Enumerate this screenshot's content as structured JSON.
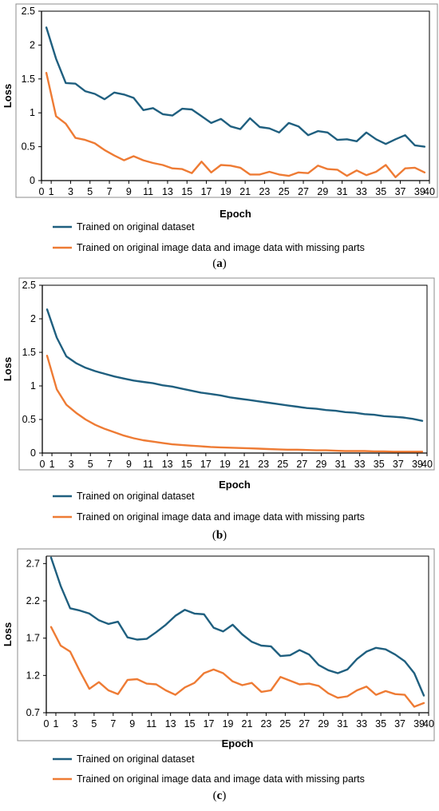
{
  "colors": {
    "series1": "#1f5f7f",
    "series2": "#ee7b34",
    "frame": "#8c8c8c"
  },
  "chart_data": [
    {
      "type": "line",
      "caption_open": "(",
      "caption_letter": "a",
      "caption_close": ")",
      "xlabel": "Epoch",
      "ylabel": "Loss",
      "xlim": [
        0,
        40
      ],
      "ylim": [
        0,
        2.5
      ],
      "yticks": [
        0,
        0.5,
        1,
        1.5,
        2,
        2.5
      ],
      "ytick_labels": [
        "0",
        "0.5",
        "1",
        "1.5",
        "2",
        "2.5"
      ],
      "xticks": [
        0,
        1,
        3,
        5,
        7,
        9,
        11,
        13,
        15,
        17,
        19,
        21,
        23,
        25,
        27,
        29,
        31,
        33,
        35,
        37,
        39,
        40
      ],
      "xtick_labels": [
        "0",
        "1",
        "3",
        "5",
        "7",
        "9",
        "11",
        "13",
        "15",
        "17",
        "19",
        "21",
        "23",
        "25",
        "27",
        "29",
        "31",
        "33",
        "35",
        "37",
        "39",
        "40"
      ],
      "x": [
        0.5,
        1.5,
        2.5,
        3.5,
        4.5,
        5.5,
        6.5,
        7.5,
        8.5,
        9.5,
        10.5,
        11.5,
        12.5,
        13.5,
        14.5,
        15.5,
        16.5,
        17.5,
        18.5,
        19.5,
        20.5,
        21.5,
        22.5,
        23.5,
        24.5,
        25.5,
        26.5,
        27.5,
        28.5,
        29.5,
        30.5,
        31.5,
        32.5,
        33.5,
        34.5,
        35.5,
        36.5,
        37.5,
        38.5,
        39.5
      ],
      "series": [
        {
          "name": "Trained on original dataset",
          "values": [
            2.26,
            1.8,
            1.44,
            1.43,
            1.32,
            1.28,
            1.2,
            1.3,
            1.27,
            1.22,
            1.04,
            1.07,
            0.98,
            0.96,
            1.06,
            1.05,
            0.95,
            0.85,
            0.91,
            0.8,
            0.76,
            0.92,
            0.79,
            0.77,
            0.71,
            0.85,
            0.8,
            0.67,
            0.73,
            0.71,
            0.6,
            0.61,
            0.58,
            0.71,
            0.61,
            0.54,
            0.61,
            0.67,
            0.52,
            0.5
          ]
        },
        {
          "name": "Trained on original image data and image data with missing parts",
          "values": [
            1.59,
            0.95,
            0.84,
            0.63,
            0.6,
            0.55,
            0.45,
            0.37,
            0.3,
            0.36,
            0.3,
            0.26,
            0.23,
            0.18,
            0.17,
            0.11,
            0.28,
            0.12,
            0.23,
            0.22,
            0.19,
            0.09,
            0.09,
            0.13,
            0.09,
            0.07,
            0.12,
            0.11,
            0.22,
            0.17,
            0.16,
            0.07,
            0.15,
            0.08,
            0.13,
            0.23,
            0.05,
            0.18,
            0.19,
            0.12
          ]
        }
      ]
    },
    {
      "type": "line",
      "caption_open": "(",
      "caption_letter": "b",
      "caption_close": ")",
      "xlabel": "Epoch",
      "ylabel": "Loss",
      "xlim": [
        0,
        40
      ],
      "ylim": [
        0,
        2.5
      ],
      "yticks": [
        0,
        0.5,
        1,
        1.5,
        2,
        2.5
      ],
      "ytick_labels": [
        "0",
        "0.5",
        "1",
        "1.5",
        "2",
        "2.5"
      ],
      "xticks": [
        0,
        1,
        3,
        5,
        7,
        9,
        11,
        13,
        15,
        17,
        19,
        21,
        23,
        25,
        27,
        29,
        31,
        33,
        35,
        37,
        39,
        40
      ],
      "xtick_labels": [
        "0",
        "1",
        "3",
        "5",
        "7",
        "9",
        "11",
        "13",
        "15",
        "17",
        "19",
        "21",
        "23",
        "25",
        "27",
        "29",
        "31",
        "33",
        "35",
        "37",
        "39",
        "40"
      ],
      "x": [
        0.5,
        1.5,
        2.5,
        3.5,
        4.5,
        5.5,
        6.5,
        7.5,
        8.5,
        9.5,
        10.5,
        11.5,
        12.5,
        13.5,
        14.5,
        15.5,
        16.5,
        17.5,
        18.5,
        19.5,
        20.5,
        21.5,
        22.5,
        23.5,
        24.5,
        25.5,
        26.5,
        27.5,
        28.5,
        29.5,
        30.5,
        31.5,
        32.5,
        33.5,
        34.5,
        35.5,
        36.5,
        37.5,
        38.5,
        39.5
      ],
      "series": [
        {
          "name": "Trained on original dataset",
          "values": [
            2.14,
            1.72,
            1.44,
            1.34,
            1.27,
            1.22,
            1.18,
            1.14,
            1.11,
            1.08,
            1.06,
            1.04,
            1.01,
            0.99,
            0.96,
            0.93,
            0.9,
            0.88,
            0.86,
            0.83,
            0.81,
            0.79,
            0.77,
            0.75,
            0.73,
            0.71,
            0.69,
            0.67,
            0.66,
            0.64,
            0.63,
            0.61,
            0.6,
            0.58,
            0.57,
            0.55,
            0.54,
            0.53,
            0.51,
            0.48
          ]
        },
        {
          "name": "Trained on original image data and image data with missing parts",
          "values": [
            1.45,
            0.95,
            0.72,
            0.6,
            0.5,
            0.42,
            0.36,
            0.31,
            0.26,
            0.22,
            0.19,
            0.17,
            0.15,
            0.13,
            0.12,
            0.11,
            0.1,
            0.09,
            0.085,
            0.08,
            0.075,
            0.07,
            0.065,
            0.06,
            0.055,
            0.05,
            0.05,
            0.045,
            0.04,
            0.04,
            0.035,
            0.03,
            0.03,
            0.03,
            0.025,
            0.025,
            0.02,
            0.02,
            0.02,
            0.02
          ]
        }
      ]
    },
    {
      "type": "line",
      "caption_open": "(",
      "caption_letter": "c",
      "caption_close": ")",
      "xlabel": "Epoch",
      "ylabel": "Loss",
      "xlim": [
        0,
        40
      ],
      "ylim": [
        0.7,
        2.8
      ],
      "yticks": [
        0.7,
        1.2,
        1.7,
        2.2,
        2.7
      ],
      "ytick_labels": [
        "0.7",
        "1.2",
        "1.7",
        "2.2",
        "2.7"
      ],
      "xticks": [
        0,
        1,
        3,
        5,
        7,
        9,
        11,
        13,
        15,
        17,
        19,
        21,
        23,
        25,
        27,
        29,
        31,
        33,
        35,
        37,
        39,
        40
      ],
      "xtick_labels": [
        "0",
        "1",
        "3",
        "5",
        "7",
        "9",
        "11",
        "13",
        "15",
        "17",
        "19",
        "21",
        "23",
        "25",
        "27",
        "29",
        "31",
        "33",
        "35",
        "37",
        "39",
        "40"
      ],
      "x": [
        0.5,
        1.5,
        2.5,
        3.5,
        4.5,
        5.5,
        6.5,
        7.5,
        8.5,
        9.5,
        10.5,
        11.5,
        12.5,
        13.5,
        14.5,
        15.5,
        16.5,
        17.5,
        18.5,
        19.5,
        20.5,
        21.5,
        22.5,
        23.5,
        24.5,
        25.5,
        26.5,
        27.5,
        28.5,
        29.5,
        30.5,
        31.5,
        32.5,
        33.5,
        34.5,
        35.5,
        36.5,
        37.5,
        38.5,
        39.5
      ],
      "series": [
        {
          "name": "Trained on original dataset",
          "values": [
            2.78,
            2.4,
            2.1,
            2.07,
            2.03,
            1.94,
            1.89,
            1.92,
            1.71,
            1.68,
            1.69,
            1.78,
            1.88,
            2.0,
            2.08,
            2.03,
            2.02,
            1.84,
            1.79,
            1.88,
            1.75,
            1.65,
            1.6,
            1.59,
            1.46,
            1.47,
            1.54,
            1.48,
            1.34,
            1.27,
            1.23,
            1.28,
            1.42,
            1.52,
            1.57,
            1.55,
            1.48,
            1.39,
            1.23,
            0.93
          ]
        },
        {
          "name": "Trained on original image data and image data with missing parts",
          "values": [
            1.85,
            1.6,
            1.52,
            1.26,
            1.02,
            1.11,
            1.0,
            0.95,
            1.14,
            1.15,
            1.09,
            1.08,
            1.0,
            0.94,
            1.04,
            1.1,
            1.23,
            1.28,
            1.23,
            1.12,
            1.07,
            1.1,
            0.98,
            1.0,
            1.18,
            1.13,
            1.08,
            1.09,
            1.06,
            0.96,
            0.9,
            0.92,
            1.0,
            1.05,
            0.94,
            0.99,
            0.95,
            0.94,
            0.78,
            0.83
          ]
        }
      ]
    }
  ]
}
